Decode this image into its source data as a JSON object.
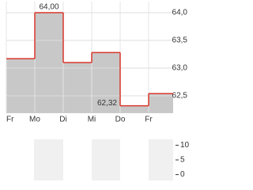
{
  "chart_data": [
    {
      "type": "line",
      "step": true,
      "categories": [
        "Fr",
        "Mo",
        "Di",
        "Mi",
        "Do",
        "Fr"
      ],
      "values": [
        63.17,
        64.0,
        63.1,
        63.28,
        62.32,
        62.54
      ],
      "value_labels": [
        null,
        "64,00",
        null,
        null,
        "62,32",
        null
      ],
      "color": "#d9372c",
      "fill": "#c8c8c8",
      "ylim": [
        62.2,
        64.2
      ],
      "yticks": [
        {
          "value": 64,
          "label": "64,0"
        },
        {
          "value": 63.5,
          "label": "63,5"
        },
        {
          "value": 63,
          "label": "63,0"
        },
        {
          "value": 62.5,
          "label": "62,5"
        }
      ],
      "grid": true
    },
    {
      "type": "bar",
      "ylim": [
        -2,
        12
      ],
      "yticks": [
        10,
        5,
        0
      ],
      "grid": false
    }
  ]
}
